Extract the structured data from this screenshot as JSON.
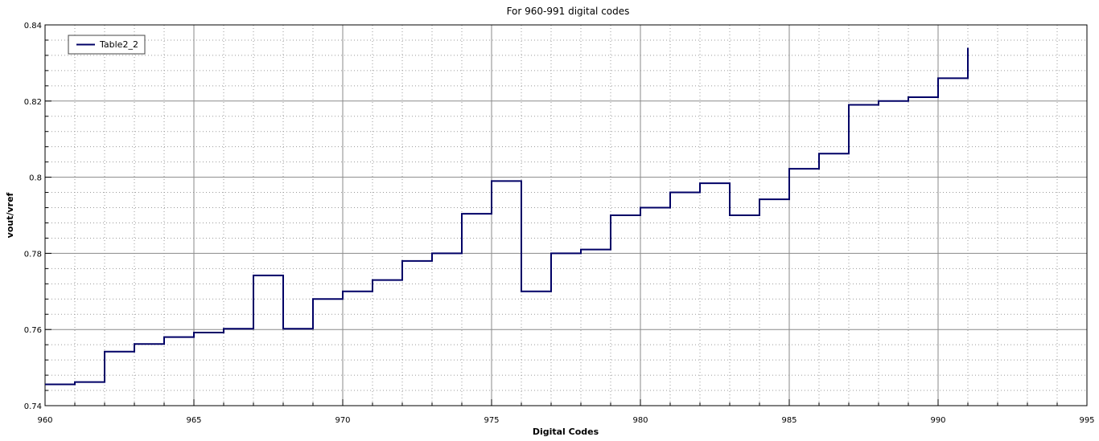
{
  "chart_data": {
    "type": "line",
    "title": "For 960-991 digital codes",
    "xlabel": "Digital Codes",
    "ylabel": "vout/vref",
    "xlim": [
      960,
      995
    ],
    "ylim": [
      0.74,
      0.84
    ],
    "x_ticks": [
      "960",
      "965",
      "970",
      "975",
      "980",
      "985",
      "990",
      "995"
    ],
    "y_ticks": [
      "0.74",
      "0.76",
      "0.78",
      "0.8",
      "0.82",
      "0.84"
    ],
    "grid": true,
    "legend_position": "top-left",
    "step": true,
    "series": [
      {
        "name": "Table2_2",
        "color": "#000066",
        "x": [
          960,
          961,
          962,
          963,
          964,
          965,
          966,
          967,
          968,
          969,
          970,
          971,
          972,
          973,
          974,
          975,
          976,
          977,
          978,
          979,
          980,
          981,
          982,
          983,
          984,
          985,
          986,
          987,
          988,
          989,
          990,
          991
        ],
        "values": [
          0.7456,
          0.7462,
          0.7542,
          0.7562,
          0.758,
          0.7592,
          0.7602,
          0.7742,
          0.7602,
          0.768,
          0.77,
          0.773,
          0.778,
          0.78,
          0.7904,
          0.799,
          0.77,
          0.78,
          0.781,
          0.79,
          0.792,
          0.796,
          0.7984,
          0.79,
          0.7942,
          0.8022,
          0.8062,
          0.819,
          0.82,
          0.821,
          0.826,
          0.834
        ]
      }
    ]
  }
}
